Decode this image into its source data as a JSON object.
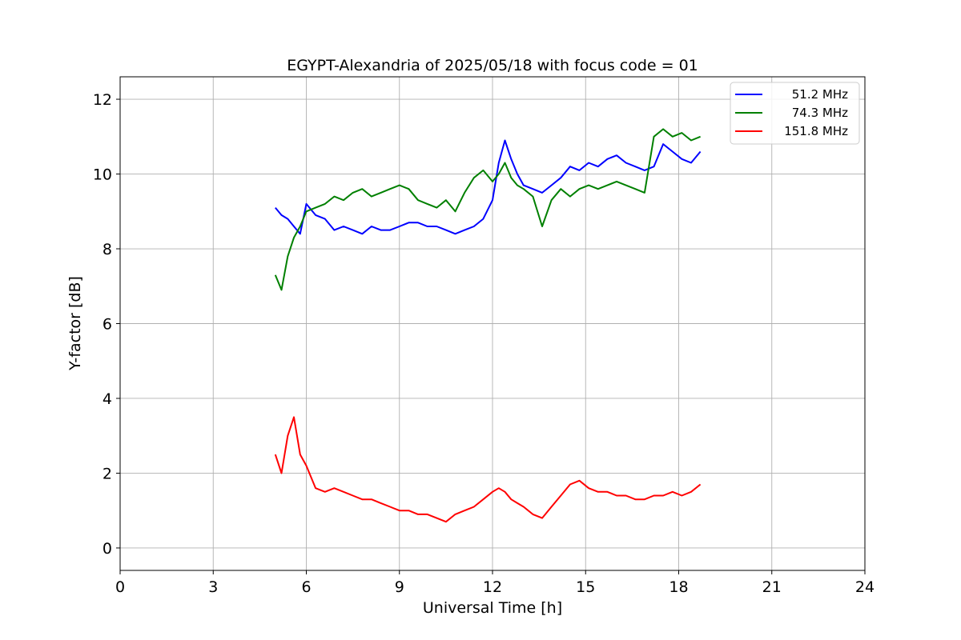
{
  "chart_data": {
    "type": "line",
    "title": "EGYPT-Alexandria of 2025/05/18 with focus code = 01",
    "xlabel": "Universal Time [h]",
    "ylabel": "Y-factor [dB]",
    "xlim": [
      0,
      24
    ],
    "ylim": [
      -0.6,
      12.6
    ],
    "xticks": [
      0,
      3,
      6,
      9,
      12,
      15,
      18,
      21,
      24
    ],
    "yticks": [
      0,
      2,
      4,
      6,
      8,
      10,
      12
    ],
    "grid": true,
    "legend_position": "top-right",
    "series": [
      {
        "name": "51.2 MHz",
        "color": "#0000ff",
        "x": [
          5.0,
          5.2,
          5.4,
          5.6,
          5.8,
          6.0,
          6.3,
          6.6,
          6.9,
          7.2,
          7.5,
          7.8,
          8.1,
          8.4,
          8.7,
          9.0,
          9.3,
          9.6,
          9.9,
          10.2,
          10.5,
          10.8,
          11.1,
          11.4,
          11.7,
          12.0,
          12.2,
          12.4,
          12.6,
          12.8,
          13.0,
          13.3,
          13.6,
          13.9,
          14.2,
          14.5,
          14.8,
          15.1,
          15.4,
          15.7,
          16.0,
          16.3,
          16.6,
          16.9,
          17.2,
          17.5,
          17.8,
          18.1,
          18.4,
          18.7
        ],
        "y": [
          9.1,
          8.9,
          8.8,
          8.6,
          8.4,
          9.2,
          8.9,
          8.8,
          8.5,
          8.6,
          8.5,
          8.4,
          8.6,
          8.5,
          8.5,
          8.6,
          8.7,
          8.7,
          8.6,
          8.6,
          8.5,
          8.4,
          8.5,
          8.6,
          8.8,
          9.3,
          10.3,
          10.9,
          10.4,
          10.0,
          9.7,
          9.6,
          9.5,
          9.7,
          9.9,
          10.2,
          10.1,
          10.3,
          10.2,
          10.4,
          10.5,
          10.3,
          10.2,
          10.1,
          10.2,
          10.8,
          10.6,
          10.4,
          10.3,
          10.6
        ]
      },
      {
        "name": "74.3 MHz",
        "color": "#008000",
        "x": [
          5.0,
          5.2,
          5.4,
          5.6,
          5.8,
          6.0,
          6.3,
          6.6,
          6.9,
          7.2,
          7.5,
          7.8,
          8.1,
          8.4,
          8.7,
          9.0,
          9.3,
          9.6,
          9.9,
          10.2,
          10.5,
          10.8,
          11.1,
          11.4,
          11.7,
          12.0,
          12.2,
          12.4,
          12.6,
          12.8,
          13.0,
          13.3,
          13.6,
          13.9,
          14.2,
          14.5,
          14.8,
          15.1,
          15.4,
          15.7,
          16.0,
          16.3,
          16.6,
          16.9,
          17.2,
          17.5,
          17.8,
          18.1,
          18.4,
          18.7
        ],
        "y": [
          7.3,
          6.9,
          7.8,
          8.3,
          8.6,
          9.0,
          9.1,
          9.2,
          9.4,
          9.3,
          9.5,
          9.6,
          9.4,
          9.5,
          9.6,
          9.7,
          9.6,
          9.3,
          9.2,
          9.1,
          9.3,
          9.0,
          9.5,
          9.9,
          10.1,
          9.8,
          10.0,
          10.3,
          9.9,
          9.7,
          9.6,
          9.4,
          8.6,
          9.3,
          9.6,
          9.4,
          9.6,
          9.7,
          9.6,
          9.7,
          9.8,
          9.7,
          9.6,
          9.5,
          11.0,
          11.2,
          11.0,
          11.1,
          10.9,
          11.0
        ]
      },
      {
        "name": "151.8 MHz",
        "color": "#ff0000",
        "x": [
          5.0,
          5.2,
          5.4,
          5.6,
          5.8,
          6.0,
          6.3,
          6.6,
          6.9,
          7.2,
          7.5,
          7.8,
          8.1,
          8.4,
          8.7,
          9.0,
          9.3,
          9.6,
          9.9,
          10.2,
          10.5,
          10.8,
          11.1,
          11.4,
          11.7,
          12.0,
          12.2,
          12.4,
          12.6,
          12.8,
          13.0,
          13.3,
          13.6,
          13.9,
          14.2,
          14.5,
          14.8,
          15.1,
          15.4,
          15.7,
          16.0,
          16.3,
          16.6,
          16.9,
          17.2,
          17.5,
          17.8,
          18.1,
          18.4,
          18.7
        ],
        "y": [
          2.5,
          2.0,
          3.0,
          3.5,
          2.5,
          2.2,
          1.6,
          1.5,
          1.6,
          1.5,
          1.4,
          1.3,
          1.3,
          1.2,
          1.1,
          1.0,
          1.0,
          0.9,
          0.9,
          0.8,
          0.7,
          0.9,
          1.0,
          1.1,
          1.3,
          1.5,
          1.6,
          1.5,
          1.3,
          1.2,
          1.1,
          0.9,
          0.8,
          1.1,
          1.4,
          1.7,
          1.8,
          1.6,
          1.5,
          1.5,
          1.4,
          1.4,
          1.3,
          1.3,
          1.4,
          1.4,
          1.5,
          1.4,
          1.5,
          1.7
        ]
      }
    ]
  }
}
